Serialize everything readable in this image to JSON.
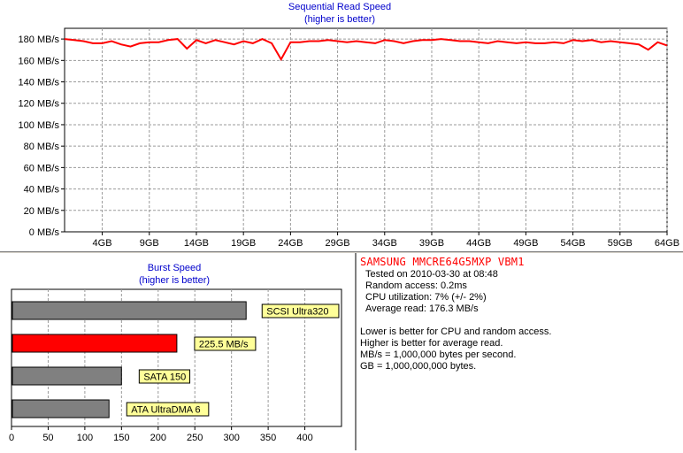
{
  "sequential": {
    "title": "Sequential Read Speed",
    "subtitle": "(higher is better)",
    "y_ticks": [
      "0 MB/s",
      "20 MB/s",
      "40 MB/s",
      "60 MB/s",
      "80 MB/s",
      "100 MB/s",
      "120 MB/s",
      "140 MB/s",
      "160 MB/s",
      "180 MB/s"
    ],
    "x_ticks": [
      "4GB",
      "9GB",
      "14GB",
      "19GB",
      "24GB",
      "29GB",
      "34GB",
      "39GB",
      "44GB",
      "49GB",
      "54GB",
      "59GB",
      "64GB"
    ],
    "line_color": "#ff0000"
  },
  "burst": {
    "title": "Burst Speed",
    "subtitle": "(higher is better)",
    "x_ticks": [
      "0",
      "50",
      "100",
      "150",
      "200",
      "250",
      "300",
      "350",
      "400"
    ],
    "labels": [
      "SCSI Ultra320",
      "225.5 MB/s",
      "SATA 150",
      "ATA UltraDMA 6"
    ]
  },
  "info": {
    "device": "SAMSUNG MMCRE64G5MXP VBM1",
    "tested": "Tested on 2010-03-30 at 08:48",
    "random_access": "Random access: 0.2ms",
    "cpu": "CPU utilization: 7% (+/- 2%)",
    "avg_read": "Average read: 176.3 MB/s",
    "note1": "Lower is better for CPU and random access.",
    "note2": "Higher is better for average read.",
    "note3": "MB/s = 1,000,000 bytes per second.",
    "note4": "GB = 1,000,000,000 bytes."
  },
  "chart_data": [
    {
      "type": "line",
      "title": "Sequential Read Speed",
      "subtitle": "(higher is better)",
      "xlabel": "",
      "ylabel": "",
      "xlim": [
        0,
        64
      ],
      "ylim": [
        0,
        190
      ],
      "grid": true,
      "series": [
        {
          "color": "#ff0000",
          "x": [
            0,
            1,
            2,
            3,
            4,
            5,
            6,
            7,
            8,
            9,
            10,
            11,
            12,
            13,
            14,
            15,
            16,
            17,
            18,
            19,
            20,
            21,
            22,
            23,
            24,
            25,
            26,
            27,
            28,
            29,
            30,
            31,
            32,
            33,
            34,
            35,
            36,
            37,
            38,
            39,
            40,
            41,
            42,
            43,
            44,
            45,
            46,
            47,
            48,
            49,
            50,
            51,
            52,
            53,
            54,
            55,
            56,
            57,
            58,
            59,
            60,
            61,
            62,
            63,
            64
          ],
          "y": [
            180,
            179,
            178,
            176,
            176,
            178,
            175,
            173,
            176,
            177,
            177,
            179,
            180,
            171,
            179,
            176,
            179,
            177,
            175,
            178,
            176,
            180,
            176,
            161,
            177,
            177,
            178,
            178,
            179,
            178,
            177,
            178,
            177,
            176,
            179,
            178,
            176,
            178,
            179,
            179,
            180,
            179,
            178,
            178,
            177,
            176,
            178,
            177,
            176,
            177,
            176,
            176,
            177,
            176,
            179,
            178,
            179,
            177,
            178,
            177,
            176,
            175,
            170,
            177,
            174
          ]
        }
      ]
    },
    {
      "type": "bar",
      "title": "Burst Speed",
      "subtitle": "(higher is better)",
      "orientation": "horizontal",
      "categories": [
        "SCSI Ultra320",
        "225.5 MB/s",
        "SATA 150",
        "ATA UltraDMA 6"
      ],
      "values": [
        320,
        225.5,
        150,
        133
      ],
      "colors": [
        "#808080",
        "#ff0000",
        "#808080",
        "#808080"
      ],
      "xlim": [
        0,
        450
      ],
      "grid": true
    }
  ]
}
